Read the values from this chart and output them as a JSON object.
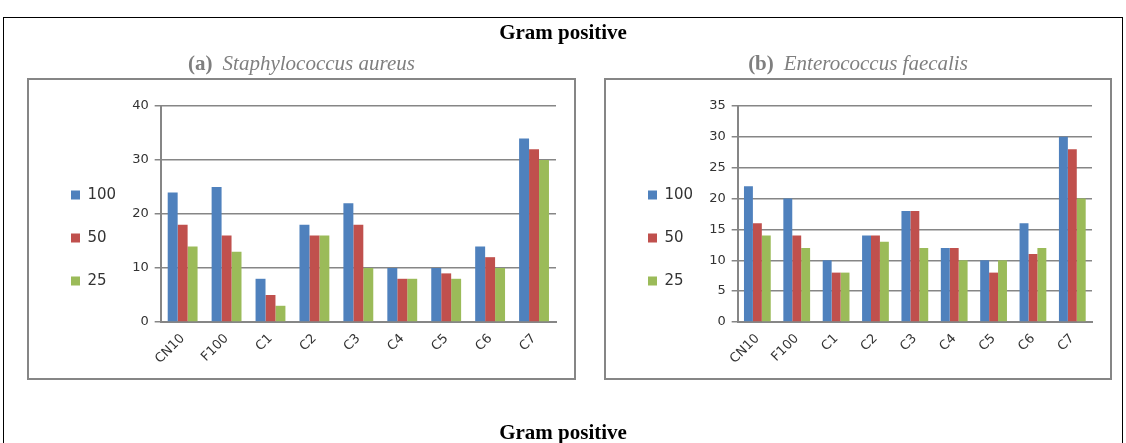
{
  "chart_data": [
    {
      "type": "bar",
      "title": "(a) Staphylococcus aureus",
      "annotations": [
        "Gram positive"
      ],
      "categories": [
        "CN10",
        "F100",
        "C1",
        "C2",
        "C3",
        "C4",
        "C5",
        "C6",
        "C7"
      ],
      "series": [
        {
          "name": "100",
          "color": "#4f81bd",
          "values": [
            24,
            25,
            8,
            18,
            22,
            10,
            10,
            14,
            34
          ]
        },
        {
          "name": "50",
          "color": "#c0504d",
          "values": [
            18,
            16,
            5,
            16,
            18,
            8,
            9,
            12,
            32
          ]
        },
        {
          "name": "25",
          "color": "#9bbb59",
          "values": [
            14,
            13,
            3,
            16,
            10,
            8,
            8,
            10,
            30
          ]
        }
      ],
      "ylim": [
        0,
        40
      ],
      "yticks": [
        0,
        10,
        20,
        30,
        40
      ],
      "grid": "y",
      "legend": "left"
    },
    {
      "type": "bar",
      "title": "(b) Enterococcus faecalis",
      "annotations": [
        "Gram positive"
      ],
      "categories": [
        "CN10",
        "F100",
        "C1",
        "C2",
        "C3",
        "C4",
        "C5",
        "C6",
        "C7"
      ],
      "series": [
        {
          "name": "100",
          "color": "#4f81bd",
          "values": [
            22,
            20,
            10,
            14,
            18,
            12,
            10,
            16,
            30
          ]
        },
        {
          "name": "50",
          "color": "#c0504d",
          "values": [
            16,
            14,
            8,
            14,
            18,
            12,
            8,
            11,
            28
          ]
        },
        {
          "name": "25",
          "color": "#9bbb59",
          "values": [
            14,
            12,
            8,
            13,
            12,
            10,
            10,
            12,
            20
          ]
        }
      ],
      "ylim": [
        0,
        35
      ],
      "yticks": [
        0,
        5,
        10,
        15,
        20,
        25,
        30,
        35
      ],
      "grid": "y",
      "legend": "left"
    }
  ]
}
